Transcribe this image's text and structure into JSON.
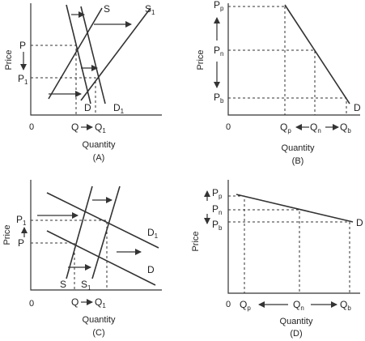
{
  "panels": [
    {
      "id": "A",
      "caption": "(A)",
      "ylabel": "Price",
      "xlabel": "Quantity",
      "origin": "0",
      "curves": {
        "s": "S",
        "s1": "S",
        "s1_sub": "1",
        "d": "D",
        "d1": "D",
        "d1_sub": "1"
      },
      "prices": {
        "p": "P",
        "p1": "P",
        "p1_sub": "1"
      },
      "quantities": {
        "q": "Q",
        "q1": "Q",
        "q1_sub": "1"
      }
    },
    {
      "id": "B",
      "caption": "(B)",
      "ylabel": "Price",
      "xlabel": "Quantity",
      "origin": "0",
      "curves": {
        "d": "D"
      },
      "prices": {
        "pp": "P",
        "pp_sub": "p",
        "pn": "P",
        "pn_sub": "n",
        "pb": "P",
        "pb_sub": "b"
      },
      "quantities": {
        "qp": "Q",
        "qp_sub": "p",
        "qn": "Q",
        "qn_sub": "n",
        "qb": "Q",
        "qb_sub": "b"
      }
    },
    {
      "id": "C",
      "caption": "(C)",
      "ylabel": "Price",
      "xlabel": "Quantity",
      "origin": "0",
      "curves": {
        "s": "S",
        "s1": "S",
        "s1_sub": "1",
        "d": "D",
        "d1": "D",
        "d1_sub": "1"
      },
      "prices": {
        "p": "P",
        "p1": "P",
        "p1_sub": "1"
      },
      "quantities": {
        "q": "Q",
        "q1": "Q",
        "q1_sub": "1"
      }
    },
    {
      "id": "D",
      "caption": "(D)",
      "ylabel": "Price",
      "xlabel": "Quantity",
      "origin": "0",
      "curves": {
        "d": "D"
      },
      "prices": {
        "pp": "P",
        "pp_sub": "p",
        "pn": "P",
        "pn_sub": "n",
        "pb": "P",
        "pb_sub": "b"
      },
      "quantities": {
        "qp": "Q",
        "qp_sub": "p",
        "qn": "Q",
        "qn_sub": "n",
        "qb": "Q",
        "qb_sub": "b"
      }
    }
  ]
}
